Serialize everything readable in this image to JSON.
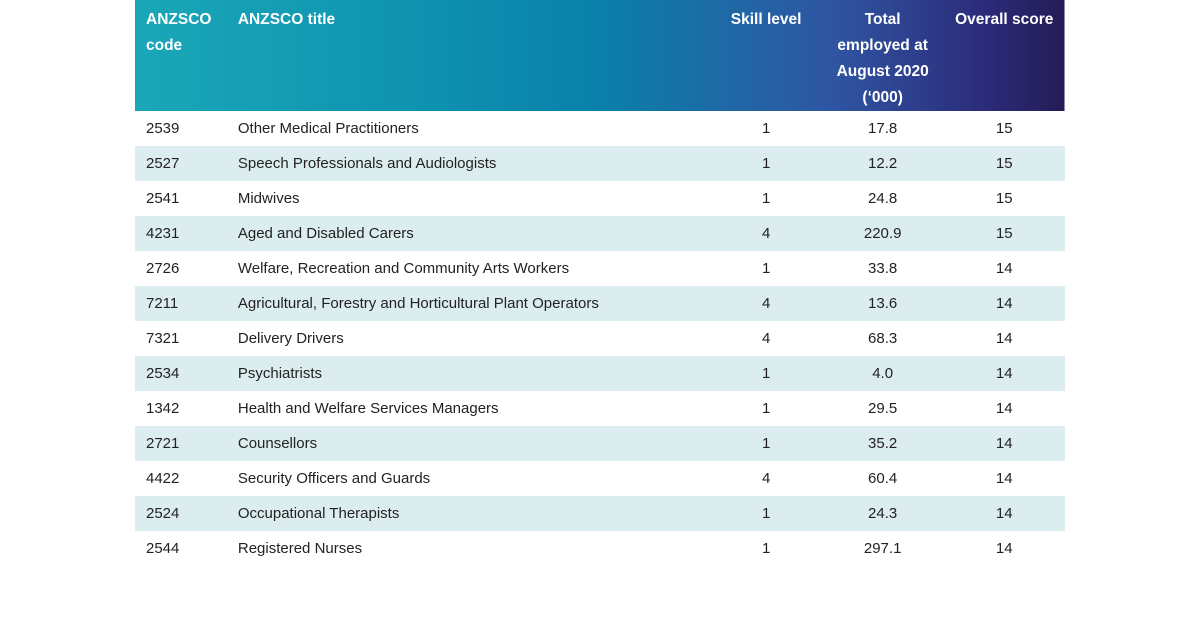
{
  "table": {
    "headers": [
      "ANZSCO code",
      "ANZSCO title",
      "Skill level",
      "Total employed at August 2020 ('000)",
      "Overall score"
    ],
    "header_lines": {
      "code": [
        "ANZSCO",
        "code"
      ],
      "employed": [
        "Total",
        "employed at",
        "August 2020",
        "(‘000)"
      ]
    },
    "rows": [
      [
        "2539",
        "Other Medical Practitioners",
        "1",
        "17.8",
        "15"
      ],
      [
        "2527",
        "Speech Professionals and Audiologists",
        "1",
        "12.2",
        "15"
      ],
      [
        "2541",
        "Midwives",
        "1",
        "24.8",
        "15"
      ],
      [
        "4231",
        "Aged and Disabled Carers",
        "4",
        "220.9",
        "15"
      ],
      [
        "2726",
        "Welfare, Recreation and Community Arts Workers",
        "1",
        "33.8",
        "14"
      ],
      [
        "7211",
        "Agricultural, Forestry and Horticultural Plant Operators",
        "4",
        "13.6",
        "14"
      ],
      [
        "7321",
        "Delivery Drivers",
        "4",
        "68.3",
        "14"
      ],
      [
        "2534",
        "Psychiatrists",
        "1",
        "4.0",
        "14"
      ],
      [
        "1342",
        "Health and Welfare Services Managers",
        "1",
        "29.5",
        "14"
      ],
      [
        "2721",
        "Counsellors",
        "1",
        "35.2",
        "14"
      ],
      [
        "4422",
        "Security Officers and Guards",
        "4",
        "60.4",
        "14"
      ],
      [
        "2524",
        "Occupational Therapists",
        "1",
        "24.3",
        "14"
      ],
      [
        "2544",
        "Registered Nurses",
        "1",
        "297.1",
        "14"
      ]
    ]
  },
  "colors": {
    "header_start": "#1ba7b8",
    "header_end": "#241c55",
    "stripe": "#dcedf0"
  }
}
